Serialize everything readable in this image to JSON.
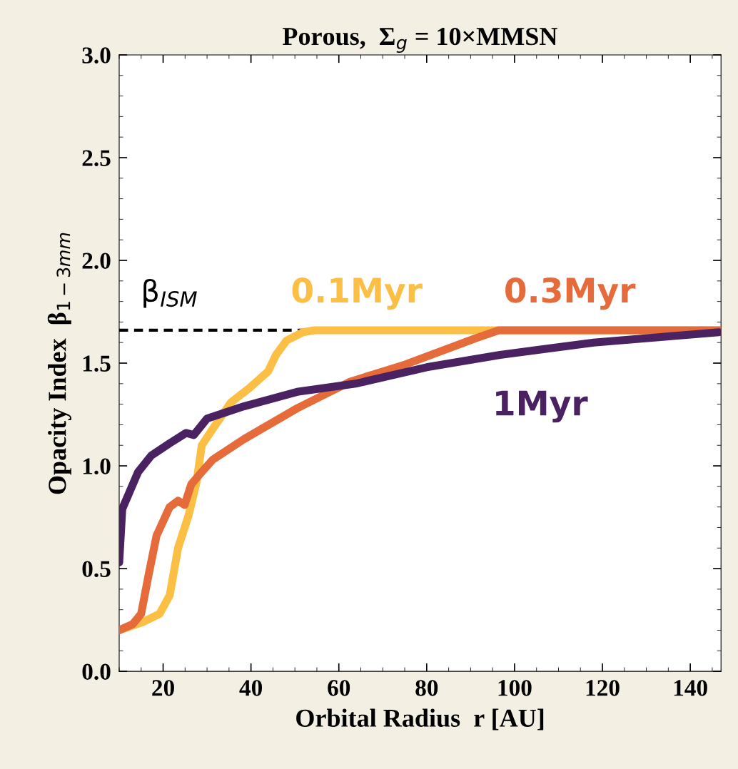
{
  "chart_data": {
    "type": "line",
    "title": "Porous,  Σ$_{g}$ = 10×MMSN",
    "xlabel": "Orbital Radius  r [AU]",
    "ylabel": "Opacity Index  β$_{1−3mm}$",
    "xlim": [
      10,
      147
    ],
    "ylim": [
      0,
      3
    ],
    "xticks": [
      20,
      40,
      60,
      80,
      100,
      120,
      140
    ],
    "yticks": [
      {
        "value": 0,
        "label": "0.0"
      },
      0.5,
      {
        "value": 1,
        "label": "1.0"
      },
      1.5,
      {
        "value": 2,
        "label": "2.0"
      },
      2.5,
      {
        "value": 3,
        "label": "3.0"
      }
    ],
    "grid": false,
    "legend": false,
    "marker": "none",
    "line_style": "solid",
    "ref_lines": [
      {
        "axis": "y",
        "value": 1.66,
        "label": "β$_{ISM}$",
        "color": "#000000",
        "line_style": "dashed"
      }
    ],
    "series": [
      {
        "name": "0.1Myr",
        "color": "#fbbf45",
        "x": [
          10,
          15.4,
          19.2,
          21.5,
          23.4,
          25.8,
          27.6,
          28.8,
          31.3,
          35.5,
          39.7,
          43.9,
          45.7,
          48.1,
          51.8,
          54.5,
          80,
          147
        ],
        "values": [
          0.2,
          0.24,
          0.28,
          0.37,
          0.6,
          0.76,
          0.92,
          1.1,
          1.18,
          1.31,
          1.38,
          1.46,
          1.54,
          1.61,
          1.65,
          1.66,
          1.66,
          1.66
        ]
      },
      {
        "name": "0.3Myr",
        "color": "#e56b3b",
        "x": [
          10,
          13.1,
          15,
          16.7,
          18.5,
          21.5,
          23.4,
          24.9,
          26.4,
          28.8,
          31.3,
          38.4,
          50.5,
          62.6,
          74.7,
          91,
          96.4,
          147
        ],
        "values": [
          0.2,
          0.23,
          0.28,
          0.47,
          0.66,
          0.8,
          0.83,
          0.81,
          0.91,
          0.97,
          1.03,
          1.13,
          1.28,
          1.41,
          1.49,
          1.62,
          1.66,
          1.66
        ]
      },
      {
        "name": "1Myr",
        "color": "#4a2262",
        "x": [
          10,
          10.7,
          14.3,
          17.3,
          21.5,
          25.2,
          27,
          30,
          38.4,
          50.5,
          63.8,
          80,
          96.7,
          118,
          146.5
        ],
        "values": [
          0.53,
          0.79,
          0.97,
          1.05,
          1.11,
          1.16,
          1.15,
          1.23,
          1.29,
          1.36,
          1.4,
          1.48,
          1.54,
          1.6,
          1.65
        ]
      }
    ]
  }
}
